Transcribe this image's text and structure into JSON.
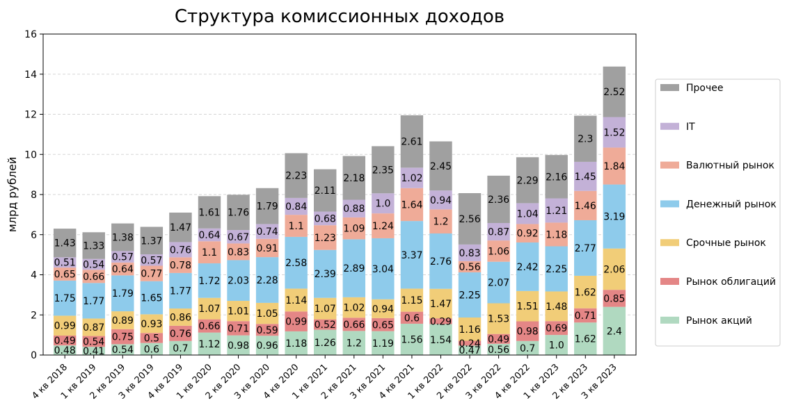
{
  "chart_data": {
    "type": "bar",
    "stacked": true,
    "title": "Структура комиссионных доходов",
    "xlabel": "",
    "ylabel": "млрд рублей",
    "ylim": [
      0,
      16
    ],
    "yticks": [
      "0",
      "2",
      "4",
      "6",
      "8",
      "10",
      "12",
      "14",
      "16"
    ],
    "grid": "horizontal-dashed",
    "legend_position": "right",
    "categories": [
      "4 кв 2018",
      "1 кв 2019",
      "2 кв 2019",
      "3 кв 2019",
      "4 кв 2019",
      "1 кв 2020",
      "2 кв 2020",
      "3 кв 2020",
      "4 кв 2020",
      "1 кв 2021",
      "2 кв 2021",
      "3 кв 2021",
      "4 кв 2021",
      "1 кв 2022",
      "2 кв 2022",
      "3 кв 2022",
      "4 кв 2022",
      "1 кв 2023",
      "2 кв 2023",
      "3 кв 2023"
    ],
    "series": [
      {
        "name": "Рынок акций",
        "color": "#b0d9c0",
        "values": [
          0.48,
          0.41,
          0.54,
          0.6,
          0.7,
          1.12,
          0.98,
          0.96,
          1.18,
          1.26,
          1.2,
          1.19,
          1.56,
          1.54,
          0.47,
          0.56,
          0.7,
          1.0,
          1.62,
          2.4
        ],
        "labels": [
          "0.48",
          "0.41",
          "0.54",
          "0.6",
          "0.7",
          "1.12",
          "0.98",
          "0.96",
          "1.18",
          "1.26",
          "1.2",
          "1.19",
          "1.56",
          "1.54",
          "0.47",
          "0.56",
          "0.7",
          "1.0",
          "1.62",
          "2.4"
        ]
      },
      {
        "name": "Рынок облигаций",
        "color": "#e48686",
        "values": [
          0.49,
          0.54,
          0.75,
          0.5,
          0.76,
          0.66,
          0.71,
          0.59,
          0.99,
          0.52,
          0.66,
          0.65,
          0.6,
          0.29,
          0.24,
          0.49,
          0.98,
          0.69,
          0.71,
          0.85
        ],
        "labels": [
          "0.49",
          "0.54",
          "0.75",
          "0.5",
          "0.76",
          "0.66",
          "0.71",
          "0.59",
          "0.99",
          "0.52",
          "0.66",
          "0.65",
          "0.6",
          "0.29",
          "0.24",
          "0.49",
          "0.98",
          "0.69",
          "0.71",
          "0.85"
        ]
      },
      {
        "name": "Срочные рынок",
        "color": "#f1cd78",
        "values": [
          0.99,
          0.87,
          0.89,
          0.93,
          0.86,
          1.07,
          1.01,
          1.05,
          1.14,
          1.07,
          1.02,
          0.94,
          1.15,
          1.47,
          1.16,
          1.53,
          1.51,
          1.48,
          1.62,
          2.06
        ],
        "labels": [
          "0.99",
          "0.87",
          "0.89",
          "0.93",
          "0.86",
          "1.07",
          "1.01",
          "1.05",
          "1.14",
          "1.07",
          "1.02",
          "0.94",
          "1.15",
          "1.47",
          "1.16",
          "1.53",
          "1.51",
          "1.48",
          "1.62",
          "2.06"
        ]
      },
      {
        "name": "Денежный рынок",
        "color": "#8ecbeb",
        "values": [
          1.75,
          1.77,
          1.79,
          1.65,
          1.77,
          1.72,
          2.03,
          2.28,
          2.58,
          2.39,
          2.89,
          3.04,
          3.37,
          2.76,
          2.25,
          2.07,
          2.42,
          2.25,
          2.77,
          3.19
        ],
        "labels": [
          "1.75",
          "1.77",
          "1.79",
          "1.65",
          "1.77",
          "1.72",
          "2.03",
          "2.28",
          "2.58",
          "2.39",
          "2.89",
          "3.04",
          "3.37",
          "2.76",
          "2.25",
          "2.07",
          "2.42",
          "2.25",
          "2.77",
          "3.19"
        ]
      },
      {
        "name": "Валютный рынок",
        "color": "#efab98",
        "values": [
          0.65,
          0.66,
          0.64,
          0.77,
          0.78,
          1.1,
          0.83,
          0.91,
          1.1,
          1.23,
          1.09,
          1.24,
          1.64,
          1.2,
          0.56,
          1.06,
          0.92,
          1.18,
          1.46,
          1.84
        ],
        "labels": [
          "0.65",
          "0.66",
          "0.64",
          "0.77",
          "0.78",
          "1.1",
          "0.83",
          "0.91",
          "1.1",
          "1.23",
          "1.09",
          "1.24",
          "1.64",
          "1.2",
          "0.56",
          "1.06",
          "0.92",
          "1.18",
          "1.46",
          "1.84"
        ]
      },
      {
        "name": "IT",
        "color": "#c3b1d7",
        "values": [
          0.51,
          0.54,
          0.57,
          0.57,
          0.76,
          0.64,
          0.67,
          0.74,
          0.84,
          0.68,
          0.88,
          1.0,
          1.02,
          0.94,
          0.83,
          0.87,
          1.04,
          1.21,
          1.45,
          1.52
        ],
        "labels": [
          "0.51",
          "0.54",
          "0.57",
          "0.57",
          "0.76",
          "0.64",
          "0.67",
          "0.74",
          "0.84",
          "0.68",
          "0.88",
          "1.0",
          "1.02",
          "0.94",
          "0.83",
          "0.87",
          "1.04",
          "1.21",
          "1.45",
          "1.52"
        ]
      },
      {
        "name": "Прочее",
        "color": "#a0a0a0",
        "values": [
          1.43,
          1.33,
          1.38,
          1.37,
          1.47,
          1.61,
          1.76,
          1.79,
          2.23,
          2.11,
          2.18,
          2.35,
          2.61,
          2.45,
          2.56,
          2.36,
          2.29,
          2.16,
          2.3,
          2.52
        ],
        "labels": [
          "1.43",
          "1.33",
          "1.38",
          "1.37",
          "1.47",
          "1.61",
          "1.76",
          "1.79",
          "2.23",
          "2.11",
          "2.18",
          "2.35",
          "2.61",
          "2.45",
          "2.56",
          "2.36",
          "2.29",
          "2.16",
          "2.3",
          "2.52"
        ]
      }
    ]
  }
}
